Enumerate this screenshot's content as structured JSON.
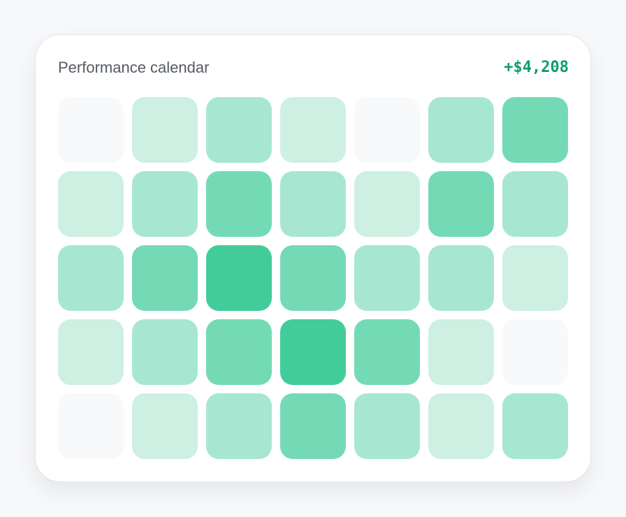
{
  "header": {
    "title": "Performance calendar",
    "total": "+$4,208"
  },
  "calendar": {
    "rows": [
      [
        "#f8f9fa",
        "#cdf0e3",
        "#a7e7d2",
        "#cdf0e3",
        "#f8f9fa",
        "#a7e7d2",
        "#74dab6"
      ],
      [
        "#cdf0e3",
        "#a7e7d2",
        "#74dab6",
        "#a7e7d2",
        "#cdf0e3",
        "#74dab6",
        "#a7e7d2"
      ],
      [
        "#a7e7d2",
        "#74dab6",
        "#42cc9a",
        "#74dab6",
        "#a7e7d2",
        "#a7e7d2",
        "#cdf0e3"
      ],
      [
        "#cdf0e3",
        "#a7e7d2",
        "#74dab6",
        "#42cc9a",
        "#74dab6",
        "#cdf0e3",
        "#f8f9fa"
      ],
      [
        "#f8f9fa",
        "#cdf0e3",
        "#a7e7d2",
        "#74dab6",
        "#a7e7d2",
        "#cdf0e3",
        "#a7e7d2"
      ]
    ]
  }
}
